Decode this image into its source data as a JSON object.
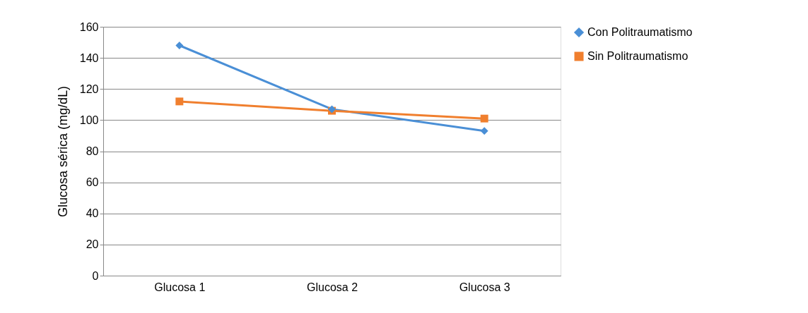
{
  "chart_data": {
    "type": "line",
    "ylabel": "Glucosa sérica (mg/dL)",
    "categories": [
      "Glucosa 1",
      "Glucosa 2",
      "Glucosa 3"
    ],
    "series": [
      {
        "name": "Con Politraumatismo",
        "color": "#4a8fd6",
        "marker": "diamond",
        "values": [
          148,
          107,
          93
        ]
      },
      {
        "name": "Sin Politraumatismo",
        "color": "#f07f2e",
        "marker": "square",
        "values": [
          112,
          106,
          101
        ]
      }
    ],
    "ylim": [
      0,
      160
    ],
    "yticks": [
      0,
      20,
      40,
      60,
      80,
      100,
      120,
      140,
      160
    ],
    "grid": "y",
    "legend": "right"
  }
}
